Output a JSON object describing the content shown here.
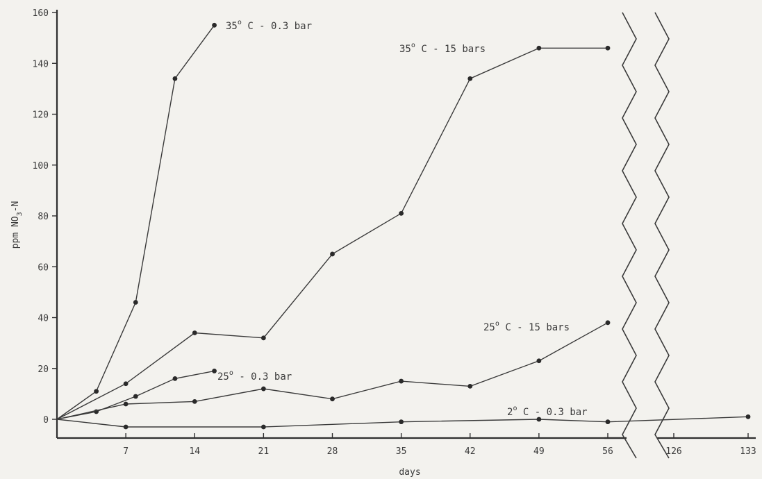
{
  "chart_data": {
    "type": "line",
    "title": "",
    "xlabel": "days",
    "ylabel": "ppm NO3-N",
    "ylabel_main": "ppm NO",
    "ylabel_sub": "3",
    "ylabel_tail": "-N",
    "ylim": [
      -7,
      160
    ],
    "y_ticks": [
      0,
      20,
      40,
      60,
      80,
      100,
      120,
      140,
      160
    ],
    "x_ticks": [
      7,
      14,
      21,
      28,
      35,
      42,
      49,
      56,
      126,
      133
    ],
    "x_break": [
      57.5,
      124
    ],
    "grid": false,
    "legend": "none",
    "series": [
      {
        "name": "35° C - 0.3 bar",
        "label": {
          "base": "35",
          "sup": "o",
          "rest": " C - 0.3 bar"
        },
        "x": [
          0,
          4,
          8,
          12,
          16
        ],
        "y": [
          0,
          11,
          46,
          134,
          155
        ]
      },
      {
        "name": "35° C - 15 bars",
        "label": {
          "base": "35",
          "sup": "o",
          "rest": " C - 15 bars"
        },
        "x": [
          0,
          7,
          14,
          21,
          28,
          35,
          42,
          49,
          56
        ],
        "y": [
          0,
          14,
          34,
          32,
          65,
          81,
          134,
          146,
          146
        ]
      },
      {
        "name": "25° - 0.3 bar",
        "label": {
          "base": "25",
          "sup": "o",
          "rest": " - 0.3 bar"
        },
        "x": [
          0,
          4,
          8,
          12,
          16
        ],
        "y": [
          0,
          3,
          9,
          16,
          19
        ]
      },
      {
        "name": "25° C - 15 bars",
        "label": {
          "base": "25",
          "sup": "o",
          "rest": " C - 15 bars"
        },
        "x": [
          0,
          7,
          14,
          21,
          28,
          35,
          42,
          49,
          56
        ],
        "y": [
          0,
          6,
          7,
          12,
          8,
          15,
          13,
          23,
          38
        ]
      },
      {
        "name": "2° C - 0.3 bar",
        "label": {
          "base": "2",
          "sup": "o",
          "rest": " C - 0.3 bar"
        },
        "x": [
          0,
          7,
          21,
          35,
          49,
          56,
          133
        ],
        "y": [
          0,
          -3,
          -3,
          -1,
          0,
          -1,
          1
        ]
      }
    ]
  }
}
